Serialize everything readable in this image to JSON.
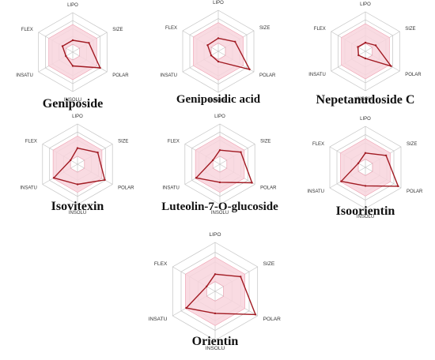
{
  "colors": {
    "grid": "#c4c4c4",
    "band_fill": "#f8d5dd",
    "band_stroke": "#ee9fb0",
    "series": "#a11a22",
    "label": "#333333"
  },
  "chart_data": [
    {
      "type": "radar",
      "title": "Geniposide",
      "axes": [
        "LIPO",
        "SIZE",
        "POLAR",
        "INSOLU",
        "INSATU",
        "FLEX"
      ],
      "ticks": [
        "",
        "",
        "",
        "",
        ""
      ],
      "grid_rings": 5,
      "range": [
        0,
        1
      ],
      "band": [
        0.2,
        0.7
      ],
      "series": [
        {
          "name": "",
          "values": [
            0.3,
            0.47,
            0.8,
            0.35,
            0.2,
            0.3
          ]
        }
      ]
    },
    {
      "type": "radar",
      "title": "Geniposidic acid",
      "axes": [
        "LIPO",
        "SIZE",
        "POLAR",
        "INSOLU",
        "INSATU",
        "FLEX"
      ],
      "ticks": [
        "",
        "",
        "",
        "",
        ""
      ],
      "grid_rings": 5,
      "range": [
        0,
        1
      ],
      "band": [
        0.2,
        0.7
      ],
      "series": [
        {
          "name": "",
          "values": [
            0.32,
            0.47,
            0.88,
            0.25,
            0.2,
            0.3
          ]
        }
      ]
    },
    {
      "type": "radar",
      "title": "Nepetanudoside C",
      "axes": [
        "LIPO",
        "SIZE",
        "POLAR",
        "INSOLU",
        "INSATU",
        "FLEX"
      ],
      "ticks": [
        "",
        "",
        "",
        "",
        ""
      ],
      "grid_rings": 5,
      "range": [
        0,
        1
      ],
      "band": [
        0.2,
        0.7
      ],
      "series": [
        {
          "name": "",
          "values": [
            0.22,
            0.3,
            0.75,
            0.18,
            0.2,
            0.22
          ]
        }
      ]
    },
    {
      "type": "radar",
      "title": "Isovitexin",
      "axes": [
        "LIPO",
        "SIZE",
        "POLAR",
        "INSOLU",
        "INSATU",
        "FLEX"
      ],
      "ticks": [
        "",
        "",
        "",
        "",
        ""
      ],
      "grid_rings": 5,
      "range": [
        0,
        1
      ],
      "band": [
        0.2,
        0.7
      ],
      "series": [
        {
          "name": "",
          "values": [
            0.4,
            0.58,
            0.78,
            0.5,
            0.68,
            0.2
          ]
        }
      ]
    },
    {
      "type": "radar",
      "title": "Luteolin-7-O-glucoside",
      "axes": [
        "LIPO",
        "SIZE",
        "POLAR",
        "INSOLU",
        "INSATU",
        "FLEX"
      ],
      "ticks": [
        "",
        "",
        "",
        "",
        ""
      ],
      "grid_rings": 5,
      "range": [
        0,
        1
      ],
      "band": [
        0.2,
        0.7
      ],
      "series": [
        {
          "name": "",
          "values": [
            0.35,
            0.6,
            0.92,
            0.45,
            0.68,
            0.2
          ]
        }
      ]
    },
    {
      "type": "radar",
      "title": "Isoorientin",
      "axes": [
        "LIPO",
        "SIZE",
        "POLAR",
        "INSOLU",
        "INSATU",
        "FLEX"
      ],
      "ticks": [
        "",
        "",
        "",
        "",
        ""
      ],
      "grid_rings": 5,
      "range": [
        0,
        1
      ],
      "band": [
        0.2,
        0.7
      ],
      "series": [
        {
          "name": "",
          "values": [
            0.35,
            0.58,
            0.92,
            0.45,
            0.68,
            0.2
          ]
        }
      ]
    },
    {
      "type": "radar",
      "title": "Orientin",
      "axes": [
        "LIPO",
        "SIZE",
        "POLAR",
        "INSOLU",
        "INSATU",
        "FLEX"
      ],
      "ticks": [
        "",
        "",
        "",
        "",
        ""
      ],
      "grid_rings": 5,
      "range": [
        0,
        1
      ],
      "band": [
        0.2,
        0.7
      ],
      "series": [
        {
          "name": "",
          "values": [
            0.35,
            0.6,
            0.95,
            0.45,
            0.68,
            0.2
          ]
        }
      ]
    }
  ]
}
